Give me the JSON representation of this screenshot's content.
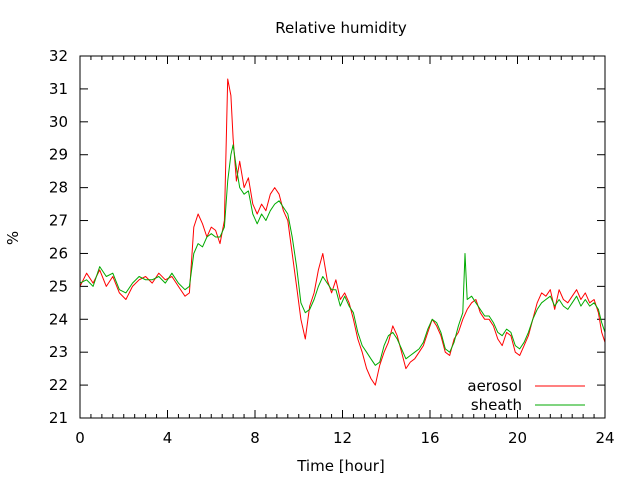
{
  "chart_data": {
    "type": "line",
    "title": "Relative humidity",
    "xlabel": "Time [hour]",
    "ylabel": "%",
    "xlim": [
      0,
      24
    ],
    "ylim": [
      21,
      32
    ],
    "x_ticks": [
      0,
      4,
      8,
      12,
      16,
      20,
      24
    ],
    "y_ticks": [
      21,
      22,
      23,
      24,
      25,
      26,
      27,
      28,
      29,
      30,
      31,
      32
    ],
    "x_minor_step": 0.5,
    "grid": false,
    "legend_position": "bottom-right",
    "series": [
      {
        "name": "aerosol",
        "color": "#ff0000",
        "points": [
          [
            0,
            25.0
          ],
          [
            0.3,
            25.4
          ],
          [
            0.6,
            25.1
          ],
          [
            0.9,
            25.5
          ],
          [
            1.2,
            25.0
          ],
          [
            1.5,
            25.3
          ],
          [
            1.8,
            24.8
          ],
          [
            2.1,
            24.6
          ],
          [
            2.4,
            25.0
          ],
          [
            2.7,
            25.2
          ],
          [
            3.0,
            25.3
          ],
          [
            3.3,
            25.1
          ],
          [
            3.6,
            25.4
          ],
          [
            3.9,
            25.2
          ],
          [
            4.2,
            25.3
          ],
          [
            4.5,
            25.0
          ],
          [
            4.8,
            24.7
          ],
          [
            5.0,
            24.8
          ],
          [
            5.2,
            26.8
          ],
          [
            5.4,
            27.2
          ],
          [
            5.6,
            26.9
          ],
          [
            5.8,
            26.5
          ],
          [
            6.0,
            26.8
          ],
          [
            6.2,
            26.7
          ],
          [
            6.4,
            26.3
          ],
          [
            6.6,
            27.0
          ],
          [
            6.75,
            31.3
          ],
          [
            6.9,
            30.8
          ],
          [
            7.0,
            29.5
          ],
          [
            7.15,
            28.2
          ],
          [
            7.3,
            28.8
          ],
          [
            7.5,
            28.0
          ],
          [
            7.7,
            28.3
          ],
          [
            7.9,
            27.5
          ],
          [
            8.1,
            27.2
          ],
          [
            8.3,
            27.5
          ],
          [
            8.5,
            27.3
          ],
          [
            8.7,
            27.8
          ],
          [
            8.9,
            28.0
          ],
          [
            9.1,
            27.8
          ],
          [
            9.3,
            27.3
          ],
          [
            9.5,
            27.0
          ],
          [
            9.7,
            26.0
          ],
          [
            9.9,
            25.0
          ],
          [
            10.1,
            24.0
          ],
          [
            10.3,
            23.4
          ],
          [
            10.5,
            24.4
          ],
          [
            10.7,
            24.8
          ],
          [
            10.9,
            25.5
          ],
          [
            11.1,
            26.0
          ],
          [
            11.3,
            25.2
          ],
          [
            11.5,
            24.8
          ],
          [
            11.7,
            25.2
          ],
          [
            11.9,
            24.6
          ],
          [
            12.1,
            24.8
          ],
          [
            12.3,
            24.5
          ],
          [
            12.5,
            24.0
          ],
          [
            12.7,
            23.4
          ],
          [
            12.9,
            23.0
          ],
          [
            13.1,
            22.5
          ],
          [
            13.3,
            22.2
          ],
          [
            13.5,
            22.0
          ],
          [
            13.7,
            22.6
          ],
          [
            13.9,
            23.0
          ],
          [
            14.1,
            23.3
          ],
          [
            14.3,
            23.8
          ],
          [
            14.5,
            23.5
          ],
          [
            14.7,
            23.0
          ],
          [
            14.9,
            22.5
          ],
          [
            15.1,
            22.7
          ],
          [
            15.3,
            22.8
          ],
          [
            15.5,
            23.0
          ],
          [
            15.7,
            23.2
          ],
          [
            15.9,
            23.6
          ],
          [
            16.1,
            24.0
          ],
          [
            16.3,
            23.8
          ],
          [
            16.5,
            23.5
          ],
          [
            16.7,
            23.0
          ],
          [
            16.9,
            22.9
          ],
          [
            17.1,
            23.4
          ],
          [
            17.3,
            23.6
          ],
          [
            17.5,
            24.0
          ],
          [
            17.7,
            24.3
          ],
          [
            17.9,
            24.5
          ],
          [
            18.1,
            24.6
          ],
          [
            18.3,
            24.2
          ],
          [
            18.5,
            24.0
          ],
          [
            18.7,
            24.0
          ],
          [
            18.9,
            23.8
          ],
          [
            19.1,
            23.4
          ],
          [
            19.3,
            23.2
          ],
          [
            19.5,
            23.6
          ],
          [
            19.7,
            23.5
          ],
          [
            19.9,
            23.0
          ],
          [
            20.1,
            22.9
          ],
          [
            20.3,
            23.2
          ],
          [
            20.5,
            23.5
          ],
          [
            20.7,
            24.0
          ],
          [
            20.9,
            24.5
          ],
          [
            21.1,
            24.8
          ],
          [
            21.3,
            24.7
          ],
          [
            21.5,
            24.9
          ],
          [
            21.7,
            24.3
          ],
          [
            21.9,
            24.9
          ],
          [
            22.1,
            24.6
          ],
          [
            22.3,
            24.5
          ],
          [
            22.5,
            24.7
          ],
          [
            22.7,
            24.9
          ],
          [
            22.9,
            24.6
          ],
          [
            23.1,
            24.8
          ],
          [
            23.3,
            24.5
          ],
          [
            23.5,
            24.6
          ],
          [
            23.7,
            24.2
          ],
          [
            23.85,
            23.6
          ],
          [
            24.0,
            23.3
          ]
        ]
      },
      {
        "name": "sheath",
        "color": "#00aa00",
        "points": [
          [
            0,
            25.1
          ],
          [
            0.3,
            25.2
          ],
          [
            0.6,
            25.0
          ],
          [
            0.9,
            25.6
          ],
          [
            1.2,
            25.3
          ],
          [
            1.5,
            25.4
          ],
          [
            1.8,
            24.9
          ],
          [
            2.1,
            24.8
          ],
          [
            2.4,
            25.1
          ],
          [
            2.7,
            25.3
          ],
          [
            3.0,
            25.2
          ],
          [
            3.3,
            25.2
          ],
          [
            3.6,
            25.3
          ],
          [
            3.9,
            25.1
          ],
          [
            4.2,
            25.4
          ],
          [
            4.5,
            25.1
          ],
          [
            4.8,
            24.9
          ],
          [
            5.0,
            25.0
          ],
          [
            5.2,
            26.0
          ],
          [
            5.4,
            26.3
          ],
          [
            5.6,
            26.2
          ],
          [
            5.8,
            26.5
          ],
          [
            6.0,
            26.6
          ],
          [
            6.2,
            26.5
          ],
          [
            6.4,
            26.5
          ],
          [
            6.6,
            26.8
          ],
          [
            6.75,
            28.2
          ],
          [
            6.9,
            29.0
          ],
          [
            7.0,
            29.3
          ],
          [
            7.15,
            28.6
          ],
          [
            7.3,
            28.0
          ],
          [
            7.5,
            27.8
          ],
          [
            7.7,
            27.9
          ],
          [
            7.9,
            27.2
          ],
          [
            8.1,
            26.9
          ],
          [
            8.3,
            27.2
          ],
          [
            8.5,
            27.0
          ],
          [
            8.7,
            27.3
          ],
          [
            8.9,
            27.5
          ],
          [
            9.1,
            27.6
          ],
          [
            9.3,
            27.4
          ],
          [
            9.5,
            27.2
          ],
          [
            9.7,
            26.5
          ],
          [
            9.9,
            25.6
          ],
          [
            10.1,
            24.5
          ],
          [
            10.3,
            24.2
          ],
          [
            10.5,
            24.3
          ],
          [
            10.7,
            24.6
          ],
          [
            10.9,
            25.0
          ],
          [
            11.1,
            25.3
          ],
          [
            11.3,
            25.1
          ],
          [
            11.5,
            24.9
          ],
          [
            11.7,
            24.9
          ],
          [
            11.9,
            24.4
          ],
          [
            12.1,
            24.7
          ],
          [
            12.3,
            24.4
          ],
          [
            12.5,
            24.2
          ],
          [
            12.7,
            23.6
          ],
          [
            12.9,
            23.2
          ],
          [
            13.1,
            23.0
          ],
          [
            13.3,
            22.8
          ],
          [
            13.5,
            22.6
          ],
          [
            13.7,
            22.7
          ],
          [
            13.9,
            23.2
          ],
          [
            14.1,
            23.5
          ],
          [
            14.3,
            23.6
          ],
          [
            14.5,
            23.4
          ],
          [
            14.7,
            23.1
          ],
          [
            14.9,
            22.8
          ],
          [
            15.1,
            22.9
          ],
          [
            15.3,
            23.0
          ],
          [
            15.5,
            23.1
          ],
          [
            15.7,
            23.3
          ],
          [
            15.9,
            23.7
          ],
          [
            16.1,
            24.0
          ],
          [
            16.3,
            23.9
          ],
          [
            16.5,
            23.6
          ],
          [
            16.7,
            23.1
          ],
          [
            16.9,
            23.0
          ],
          [
            17.1,
            23.3
          ],
          [
            17.3,
            23.8
          ],
          [
            17.5,
            24.2
          ],
          [
            17.6,
            26.0
          ],
          [
            17.7,
            24.6
          ],
          [
            17.9,
            24.7
          ],
          [
            18.1,
            24.5
          ],
          [
            18.3,
            24.3
          ],
          [
            18.5,
            24.1
          ],
          [
            18.7,
            24.1
          ],
          [
            18.9,
            23.9
          ],
          [
            19.1,
            23.6
          ],
          [
            19.3,
            23.5
          ],
          [
            19.5,
            23.7
          ],
          [
            19.7,
            23.6
          ],
          [
            19.9,
            23.2
          ],
          [
            20.1,
            23.1
          ],
          [
            20.3,
            23.3
          ],
          [
            20.5,
            23.6
          ],
          [
            20.7,
            24.0
          ],
          [
            20.9,
            24.3
          ],
          [
            21.1,
            24.5
          ],
          [
            21.3,
            24.6
          ],
          [
            21.5,
            24.7
          ],
          [
            21.7,
            24.4
          ],
          [
            21.9,
            24.6
          ],
          [
            22.1,
            24.4
          ],
          [
            22.3,
            24.3
          ],
          [
            22.5,
            24.5
          ],
          [
            22.7,
            24.7
          ],
          [
            22.9,
            24.4
          ],
          [
            23.1,
            24.6
          ],
          [
            23.3,
            24.4
          ],
          [
            23.5,
            24.5
          ],
          [
            23.7,
            24.3
          ],
          [
            23.85,
            23.9
          ],
          [
            24.0,
            23.6
          ]
        ]
      }
    ]
  }
}
